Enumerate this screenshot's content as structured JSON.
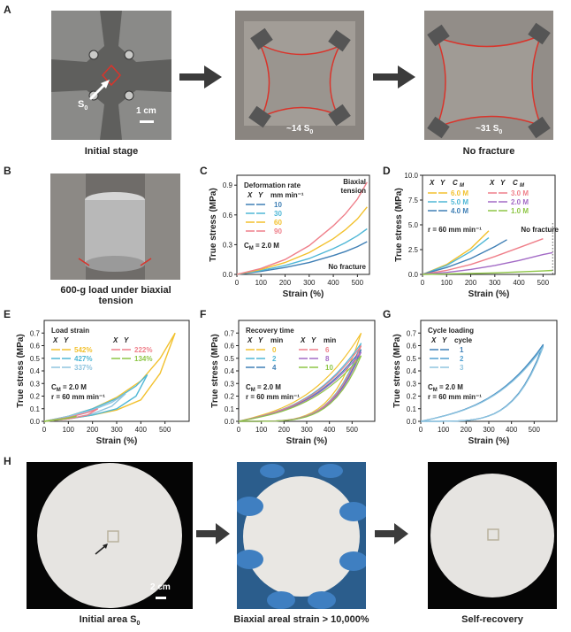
{
  "panels": {
    "A": {
      "letter": "A",
      "captions": [
        "Initial stage",
        "",
        "No fracture"
      ],
      "labels": {
        "s0": "S",
        "s0_sub": "0",
        "scale": "1 cm",
        "mid_strain": "~14 S",
        "mid_sub": "0",
        "right_strain": "~31 S",
        "right_sub": "0"
      }
    },
    "B": {
      "letter": "B",
      "caption": "600-g load under biaxial tension"
    },
    "H": {
      "letter": "H",
      "captions": [
        "Initial area S",
        "Biaxial areal strain > 10,000%",
        "Self-recovery"
      ],
      "caption_sub": "0",
      "scale": "2 cm"
    }
  },
  "colors": {
    "red_outline": "#d9342b",
    "arrow": "#3b3b3b",
    "yellow": "#f2c12e",
    "cyan": "#4fb7d6",
    "orange": "#f29a44",
    "pink": "#ef7f8a",
    "purple": "#a36bc6",
    "green": "#8ec646",
    "darkblue": "#3f7fb5",
    "lightblue": "#8fc4df"
  },
  "chart_data": [
    {
      "id": "C",
      "letter": "C",
      "type": "line",
      "xlabel": "Strain (%)",
      "ylabel": "True stress (MPa)",
      "xlim": [
        0,
        550
      ],
      "ylim": [
        0,
        1.0
      ],
      "xticks": [
        "0",
        "100",
        "200",
        "300",
        "400",
        "500"
      ],
      "yticks": [
        "0.0",
        "0.3",
        "0.6",
        "0.9"
      ],
      "legend_title": "Deformation rate",
      "legend_header": [
        "X",
        "Y",
        "mm min⁻¹"
      ],
      "annotations": [
        "Biaxial",
        "tension",
        "C",
        "M",
        " = 2.0 M",
        "No fracture"
      ],
      "series": [
        {
          "name": "10",
          "color": "#3f7fb5",
          "x": [
            0,
            100,
            200,
            300,
            400,
            450,
            500,
            540
          ],
          "y": [
            0,
            0.03,
            0.07,
            0.12,
            0.19,
            0.23,
            0.28,
            0.33
          ]
        },
        {
          "name": "30",
          "color": "#4fb7d6",
          "x": [
            0,
            100,
            200,
            300,
            400,
            450,
            500,
            540
          ],
          "y": [
            0,
            0.04,
            0.09,
            0.16,
            0.26,
            0.32,
            0.39,
            0.46
          ]
        },
        {
          "name": "60",
          "color": "#f2c12e",
          "x": [
            0,
            100,
            200,
            300,
            400,
            450,
            500,
            540
          ],
          "y": [
            0,
            0.05,
            0.12,
            0.22,
            0.36,
            0.45,
            0.56,
            0.68
          ]
        },
        {
          "name": "90",
          "color": "#ef7f8a",
          "x": [
            0,
            100,
            200,
            300,
            400,
            450,
            500,
            540
          ],
          "y": [
            0,
            0.06,
            0.15,
            0.29,
            0.49,
            0.61,
            0.76,
            0.93
          ]
        }
      ]
    },
    {
      "id": "D",
      "letter": "D",
      "type": "line",
      "xlabel": "Strain (%)",
      "ylabel": "True stress (MPa)",
      "xlim": [
        0,
        550
      ],
      "ylim": [
        0,
        10.0
      ],
      "xticks": [
        "0",
        "100",
        "200",
        "300",
        "400",
        "500"
      ],
      "yticks": [
        "0.0",
        "2.5",
        "5.0",
        "7.5",
        "10.0"
      ],
      "legend_header": [
        "X",
        "Y",
        "C",
        "M",
        "X",
        "Y",
        "C",
        "M"
      ],
      "annotations": [
        "r = 60 mm min⁻¹",
        "No fracture"
      ],
      "series": [
        {
          "name": "6.0 M",
          "color": "#f2c12e",
          "x": [
            0,
            100,
            200,
            275
          ],
          "y": [
            0,
            1.0,
            2.6,
            4.4
          ]
        },
        {
          "name": "5.0 M",
          "color": "#4fb7d6",
          "x": [
            0,
            100,
            200,
            275
          ],
          "y": [
            0,
            0.9,
            2.3,
            3.7
          ]
        },
        {
          "name": "4.0 M",
          "color": "#3f7fb5",
          "x": [
            0,
            100,
            200,
            300,
            350
          ],
          "y": [
            0,
            0.7,
            1.6,
            2.8,
            3.5
          ]
        },
        {
          "name": "3.0 M",
          "color": "#ef7f8a",
          "x": [
            0,
            100,
            200,
            300,
            400,
            500
          ],
          "y": [
            0,
            0.4,
            1.0,
            1.8,
            2.7,
            3.6
          ]
        },
        {
          "name": "2.0 M",
          "color": "#a36bc6",
          "x": [
            0,
            100,
            200,
            300,
            400,
            500,
            540
          ],
          "y": [
            0,
            0.2,
            0.5,
            0.9,
            1.4,
            2.0,
            2.2
          ]
        },
        {
          "name": "1.0 M",
          "color": "#8ec646",
          "x": [
            0,
            100,
            200,
            300,
            400,
            500,
            540
          ],
          "y": [
            0,
            0.05,
            0.1,
            0.15,
            0.25,
            0.35,
            0.4
          ]
        }
      ]
    },
    {
      "id": "E",
      "letter": "E",
      "type": "line",
      "xlabel": "Strain (%)",
      "ylabel": "True stress (MPa)",
      "xlim": [
        0,
        600
      ],
      "ylim": [
        0,
        0.8
      ],
      "xticks": [
        "0",
        "100",
        "200",
        "300",
        "400",
        "500"
      ],
      "yticks": [
        "0.0",
        "0.1",
        "0.2",
        "0.3",
        "0.4",
        "0.5",
        "0.6",
        "0.7"
      ],
      "legend_title": "Load strain",
      "legend_header": [
        "X",
        "Y",
        "X",
        "Y"
      ],
      "annotations": [
        "C",
        "M",
        " = 2.0 M",
        "r = 60 mm min⁻¹"
      ],
      "series": [
        {
          "name": "542%",
          "color": "#f2c12e",
          "load_x": [
            0,
            100,
            200,
            300,
            400,
            480,
            542
          ],
          "load_y": [
            0,
            0.04,
            0.1,
            0.19,
            0.32,
            0.5,
            0.7
          ],
          "unload_x": [
            542,
            480,
            400,
            300,
            200,
            100,
            0
          ],
          "unload_y": [
            0.7,
            0.38,
            0.17,
            0.09,
            0.05,
            0.02,
            0
          ]
        },
        {
          "name": "427%",
          "color": "#4fb7d6",
          "load_x": [
            0,
            100,
            200,
            300,
            380,
            427
          ],
          "load_y": [
            0,
            0.04,
            0.1,
            0.18,
            0.28,
            0.37
          ],
          "unload_x": [
            427,
            380,
            300,
            200,
            100,
            0
          ],
          "unload_y": [
            0.37,
            0.2,
            0.1,
            0.05,
            0.02,
            0
          ]
        },
        {
          "name": "337%",
          "color": "#8fc4df",
          "load_x": [
            0,
            100,
            200,
            280,
            337
          ],
          "load_y": [
            0,
            0.04,
            0.09,
            0.15,
            0.22
          ],
          "unload_x": [
            337,
            280,
            200,
            100,
            0
          ],
          "unload_y": [
            0.22,
            0.12,
            0.06,
            0.02,
            0
          ]
        },
        {
          "name": "222%",
          "color": "#ef7f8a",
          "load_x": [
            0,
            100,
            180,
            222
          ],
          "load_y": [
            0,
            0.03,
            0.07,
            0.1
          ],
          "unload_x": [
            222,
            180,
            100,
            0
          ],
          "unload_y": [
            0.1,
            0.05,
            0.02,
            0
          ]
        },
        {
          "name": "134%",
          "color": "#8ec646",
          "load_x": [
            0,
            80,
            134
          ],
          "load_y": [
            0,
            0.02,
            0.04
          ],
          "unload_x": [
            134,
            80,
            0
          ],
          "unload_y": [
            0.04,
            0.02,
            0
          ]
        }
      ]
    },
    {
      "id": "F",
      "letter": "F",
      "type": "line",
      "xlabel": "Strain (%)",
      "ylabel": "True stress (MPa)",
      "xlim": [
        0,
        600
      ],
      "ylim": [
        0,
        0.8
      ],
      "xticks": [
        "0",
        "100",
        "200",
        "300",
        "400",
        "500"
      ],
      "yticks": [
        "0.0",
        "0.1",
        "0.2",
        "0.3",
        "0.4",
        "0.5",
        "0.6",
        "0.7"
      ],
      "legend_title": "Recovery time",
      "legend_header": [
        "X",
        "Y",
        "min",
        "X",
        "Y",
        "min"
      ],
      "annotations": [
        "C",
        "M",
        " = 2.0 M",
        "r = 60 mm min⁻¹"
      ],
      "series": [
        {
          "name": "0",
          "color": "#f2c12e",
          "peak": 0.7
        },
        {
          "name": "2",
          "color": "#4fb7d6",
          "peak": 0.62
        },
        {
          "name": "4",
          "color": "#3f7fb5",
          "peak": 0.57
        },
        {
          "name": "6",
          "color": "#ef7f8a",
          "peak": 0.6
        },
        {
          "name": "8",
          "color": "#a36bc6",
          "peak": 0.55
        },
        {
          "name": "10",
          "color": "#8ec646",
          "peak": 0.52
        }
      ]
    },
    {
      "id": "G",
      "letter": "G",
      "type": "line",
      "xlabel": "Strain (%)",
      "ylabel": "True stress (MPa)",
      "xlim": [
        0,
        600
      ],
      "ylim": [
        0,
        0.8
      ],
      "xticks": [
        "0",
        "100",
        "200",
        "300",
        "400",
        "500"
      ],
      "yticks": [
        "0.0",
        "0.1",
        "0.2",
        "0.3",
        "0.4",
        "0.5",
        "0.6",
        "0.7"
      ],
      "legend_title": "Cycle loading",
      "legend_header": [
        "X",
        "Y",
        "cycle"
      ],
      "annotations": [
        "C",
        "M",
        " = 2.0 M",
        "r = 60 mm min⁻¹"
      ],
      "series": [
        {
          "name": "1",
          "color": "#3f7fb5",
          "peak": 0.61
        },
        {
          "name": "2",
          "color": "#4f9fd0",
          "peak": 0.6
        },
        {
          "name": "3",
          "color": "#8fc4df",
          "peak": 0.59
        }
      ]
    }
  ]
}
